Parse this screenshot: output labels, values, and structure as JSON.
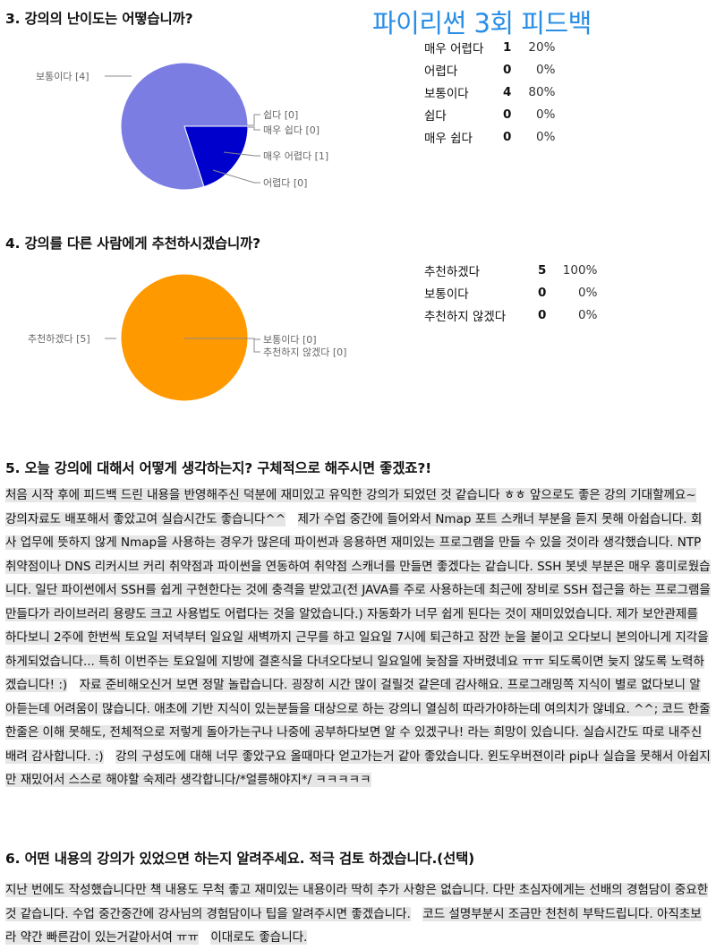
{
  "page_title": "파이리썬 3회 피드백",
  "questions": [
    {
      "title": "3. 강의의 난이도는 어떻습니까?",
      "rows": [
        {
          "label": "매우 어렵다",
          "count": "1",
          "pct": "20%"
        },
        {
          "label": "어렵다",
          "count": "0",
          "pct": "0%"
        },
        {
          "label": "보통이다",
          "count": "4",
          "pct": "80%"
        },
        {
          "label": "쉽다",
          "count": "0",
          "pct": "0%"
        },
        {
          "label": "매우 쉽다",
          "count": "0",
          "pct": "0%"
        }
      ],
      "pie_labels": [
        "보통이다 [4]",
        "쉽다 [0]",
        "매우 쉽다 [0]",
        "매우 어렵다 [1]",
        "어렵다 [0]"
      ]
    },
    {
      "title": "4. 강의를 다른 사람에게 추천하시겠습니까?",
      "rows": [
        {
          "label": "추천하겠다",
          "count": "5",
          "pct": "100%"
        },
        {
          "label": "보통이다",
          "count": "0",
          "pct": "0%"
        },
        {
          "label": "추천하지 않겠다",
          "count": "0",
          "pct": "0%"
        }
      ],
      "pie_labels": [
        "추천하겠다 [5]",
        "보통이다 [0]",
        "추천하지 않겠다 [0]"
      ]
    },
    {
      "title": "5. 오늘 강의에 대해서 어떻게 생각하는지? 구체적으로 해주시면 좋겠죠?!",
      "answers": [
        "처음 시작 후에 피드백 드린 내용을 반영해주신 덕분에 재미있고 유익한 강의가 되었던 것 같습니다 ㅎㅎ 앞으로도 좋은 강의 기대할께요~",
        "강의자료도 배포해서 좋았고여 실습시간도 좋습니다^^",
        "제가 수업 중간에 들어와서 Nmap 포트 스캐너 부분을 듣지 못해 아쉽습니다. 회사 업무에 뜻하지 않게 Nmap을 사용하는 경우가 많은데 파이썬과 응용하면 재미있는 프로그램을 만들 수 있을 것이라 생각했습니다. NTP 취약점이나 DNS 리커시브 커리 취약점과 파이썬을 연동하여 취약점 스캐너를 만들면 좋겠다는 같습니다. SSH 봇넷 부분은 매우 흥미로웠습니다. 일단 파이썬에서 SSH를 쉽게 구현한다는 것에 충격을 받았고(전 JAVA를 주로 사용하는데 최근에 장비로 SSH 접근을 하는 프로그램을 만들다가 라이브러리 용량도 크고 사용법도 어렵다는 것을 알았습니다.) 자동화가 너무 쉽게 된다는 것이 재미있었습니다. 제가 보안관제를 하다보니 2주에 한번씩 토요일 저녁부터 일요일 새벽까지 근무를 하고 일요일 7시에 퇴근하고 잠깐 눈을 붙이고 오다보니 본의아니게 지각을 하게되었습니다... 특히 이번주는 토요일에 지방에 결혼식을 다녀오다보니 일요일에 늦잠을 자버렸네요 ㅠㅠ 되도록이면 늦지 않도록 노력하겠습니다! :)",
        "자료 준비해오신거 보면 정말 놀랍습니다. 굉장히 시간 많이 걸릴것 같은데 감사해요. 프로그래밍쪽 지식이 별로 없다보니 알아듣는데 어려움이 많습니다. 애초에 기반 지식이 있는분들을 대상으로 하는 강의니 열심히 따라가야하는데 여의치가 않네요. ^^; 코드 한줄한줄은 이해 못해도, 전체적으로 저렇게 돌아가는구나 나중에 공부하다보면 알 수 있겠구나! 라는 희망이 있습니다. 실습시간도 따로 내주신 배려 감사합니다. :)",
        "강의 구성도에 대해 너무 좋았구요 올때마다 얻고가는거 같아 좋았습니다. 윈도우버젼이라 pip나 실습을 못해서 아쉽지만 재밌어서 스스로 해야할 숙제라 생각합니다/*얼릉해야지*/ ㅋㅋㅋㅋㅋ"
      ]
    },
    {
      "title": "6. 어떤 내용의 강의가 있었으면 하는지 알려주세요. 적극 검토 하겠습니다.(선택)",
      "answers": [
        "지난 번에도 작성했습니다만 책 내용도 무척 좋고 재미있는 내용이라 딱히 추가 사항은 없습니다. 다만 초심자에게는 선배의 경험담이 중요한것 같습니다. 수업 중간중간에 강사님의 경험담이나 팁을 알려주시면 좋겠습니다.",
        "코드 설명부분시 조금만 천천히 부탁드립니다. 아직초보라 약간 빠른감이 있는거같아서여 ㅠㅠ",
        "이대로도 좋습니다."
      ]
    }
  ],
  "chart_data": [
    {
      "type": "pie",
      "title": "3. 강의의 난이도는 어떻습니까?",
      "categories": [
        "매우 어렵다",
        "어렵다",
        "보통이다",
        "쉽다",
        "매우 쉽다"
      ],
      "values": [
        1,
        0,
        4,
        0,
        0
      ],
      "colors": [
        "#0000cc",
        "#d3301e",
        "#7b7de3",
        "#1e9d3a",
        "#999999"
      ]
    },
    {
      "type": "pie",
      "title": "4. 강의를 다른 사람에게 추천하시겠습니까?",
      "categories": [
        "추천하겠다",
        "보통이다",
        "추천하지 않겠다"
      ],
      "values": [
        5,
        0,
        0
      ],
      "colors": [
        "#ff9900",
        "#d3301e",
        "#999999"
      ]
    }
  ]
}
